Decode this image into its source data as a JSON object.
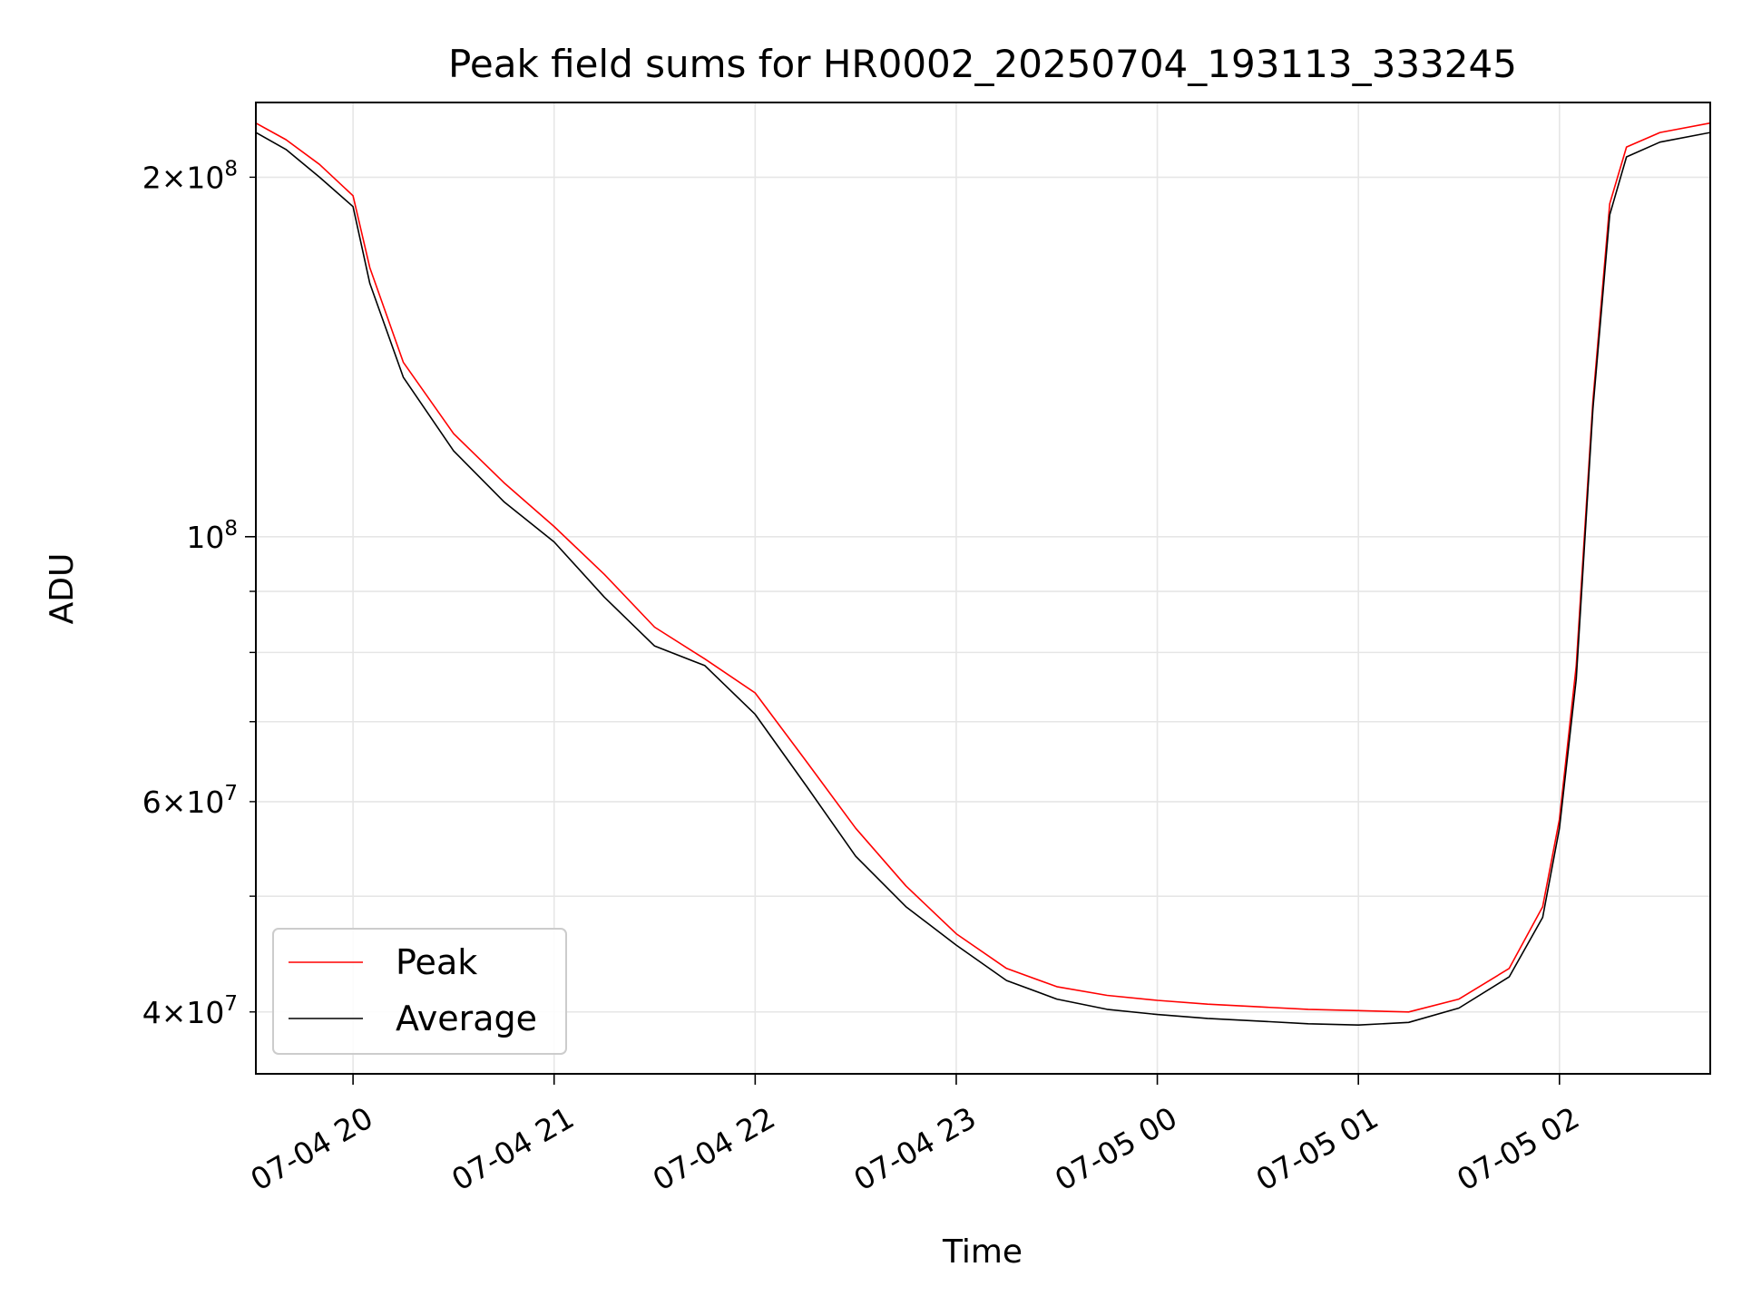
{
  "chart_data": {
    "type": "line",
    "title": "Peak field sums for HR0002_20250704_193113_333245",
    "xlabel": "Time",
    "ylabel": "ADU",
    "x_type": "datetime",
    "xlim": [
      "2025-07-04 19:31",
      "2025-07-05 02:45"
    ],
    "y_scale": "log",
    "ylim": [
      35500000,
      231000000
    ],
    "x_ticks": [
      {
        "value": "2025-07-04 20:00",
        "label": "07-04 20"
      },
      {
        "value": "2025-07-04 21:00",
        "label": "07-04 21"
      },
      {
        "value": "2025-07-04 22:00",
        "label": "07-04 22"
      },
      {
        "value": "2025-07-04 23:00",
        "label": "07-04 23"
      },
      {
        "value": "2025-07-05 00:00",
        "label": "07-05 00"
      },
      {
        "value": "2025-07-05 01:00",
        "label": "07-05 01"
      },
      {
        "value": "2025-07-05 02:00",
        "label": "07-05 02"
      }
    ],
    "y_major_ticks": [
      {
        "value": 100000000,
        "label_base": "10",
        "label_exp": "8",
        "label_mant": ""
      }
    ],
    "y_minor_labeled": [
      {
        "value": 200000000,
        "label_mant": "2",
        "label_base": "10",
        "label_exp": "8"
      },
      {
        "value": 60000000,
        "label_mant": "6",
        "label_base": "10",
        "label_exp": "7"
      },
      {
        "value": 40000000,
        "label_mant": "4",
        "label_base": "10",
        "label_exp": "7"
      }
    ],
    "y_minor_unlabeled": [
      90000000,
      80000000,
      70000000,
      50000000
    ],
    "grid": true,
    "legend": "lower-left",
    "series": [
      {
        "name": "Peak",
        "color": "#ff0000",
        "x": [
          "2025-07-04 19:31",
          "2025-07-04 19:40",
          "2025-07-04 19:50",
          "2025-07-04 20:00",
          "2025-07-04 20:05",
          "2025-07-04 20:15",
          "2025-07-04 20:30",
          "2025-07-04 20:45",
          "2025-07-04 21:00",
          "2025-07-04 21:15",
          "2025-07-04 21:30",
          "2025-07-04 21:45",
          "2025-07-04 22:00",
          "2025-07-04 22:15",
          "2025-07-04 22:30",
          "2025-07-04 22:45",
          "2025-07-04 23:00",
          "2025-07-04 23:15",
          "2025-07-04 23:30",
          "2025-07-04 23:45",
          "2025-07-05 00:00",
          "2025-07-05 00:15",
          "2025-07-05 00:30",
          "2025-07-05 00:45",
          "2025-07-05 01:00",
          "2025-07-05 01:15",
          "2025-07-05 01:30",
          "2025-07-05 01:45",
          "2025-07-05 01:55",
          "2025-07-05 02:00",
          "2025-07-05 02:05",
          "2025-07-05 02:10",
          "2025-07-05 02:15",
          "2025-07-05 02:20",
          "2025-07-05 02:30",
          "2025-07-05 02:45"
        ],
        "y": [
          222000000,
          215000000,
          205000000,
          193000000,
          168000000,
          140000000,
          122000000,
          111000000,
          102000000,
          93000000,
          84000000,
          79000000,
          74000000,
          65000000,
          57000000,
          51000000,
          46500000,
          43500000,
          42000000,
          41300000,
          40900000,
          40600000,
          40400000,
          40200000,
          40100000,
          40000000,
          41000000,
          43500000,
          49000000,
          58000000,
          78000000,
          130000000,
          190000000,
          212000000,
          218000000,
          222000000
        ]
      },
      {
        "name": "Average",
        "color": "#000000",
        "x": [
          "2025-07-04 19:31",
          "2025-07-04 19:40",
          "2025-07-04 19:50",
          "2025-07-04 20:00",
          "2025-07-04 20:05",
          "2025-07-04 20:15",
          "2025-07-04 20:30",
          "2025-07-04 20:45",
          "2025-07-04 21:00",
          "2025-07-04 21:15",
          "2025-07-04 21:30",
          "2025-07-04 21:45",
          "2025-07-04 22:00",
          "2025-07-04 22:15",
          "2025-07-04 22:30",
          "2025-07-04 22:45",
          "2025-07-04 23:00",
          "2025-07-04 23:15",
          "2025-07-04 23:30",
          "2025-07-04 23:45",
          "2025-07-05 00:00",
          "2025-07-05 00:15",
          "2025-07-05 00:30",
          "2025-07-05 00:45",
          "2025-07-05 01:00",
          "2025-07-05 01:15",
          "2025-07-05 01:30",
          "2025-07-05 01:45",
          "2025-07-05 01:55",
          "2025-07-05 02:00",
          "2025-07-05 02:05",
          "2025-07-05 02:10",
          "2025-07-05 02:15",
          "2025-07-05 02:20",
          "2025-07-05 02:30",
          "2025-07-05 02:45"
        ],
        "y": [
          218000000,
          211000000,
          200000000,
          189000000,
          163000000,
          136000000,
          118000000,
          107000000,
          99000000,
          89000000,
          81000000,
          78000000,
          71000000,
          62000000,
          54000000,
          49000000,
          45500000,
          42500000,
          41000000,
          40200000,
          39800000,
          39500000,
          39300000,
          39100000,
          39000000,
          39200000,
          40300000,
          42800000,
          48000000,
          57000000,
          76000000,
          128000000,
          186000000,
          208000000,
          214000000,
          218000000
        ]
      }
    ]
  }
}
